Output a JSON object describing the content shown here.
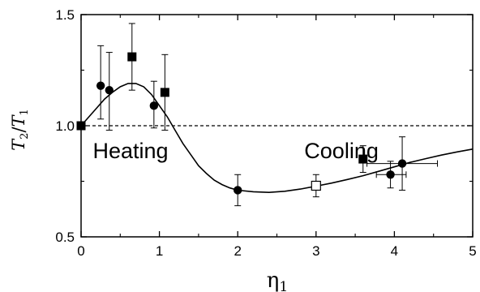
{
  "chart_data": {
    "type": "scatter",
    "xlabel": {
      "main": "η",
      "sub": "1"
    },
    "ylabel": {
      "main": "T",
      "sub1": "2",
      "sep": "/",
      "main2": "T",
      "sub2": "1"
    },
    "xlim": [
      0,
      5
    ],
    "ylim": [
      0.5,
      1.5
    ],
    "x_ticks": [
      "0",
      "1",
      "2",
      "3",
      "4",
      "5"
    ],
    "y_ticks": [
      "0.5",
      "1.0",
      "1.5"
    ],
    "reference_line": {
      "y": 1.0,
      "style": "dashed"
    },
    "annotations": [
      {
        "text": "Heating",
        "x": 0.15,
        "y": 0.92
      },
      {
        "text": "Cooling",
        "x": 2.85,
        "y": 0.92
      }
    ],
    "series": [
      {
        "marker": "filled-circle",
        "points": [
          {
            "x": 0.25,
            "y": 1.18,
            "y_err_lo": 0.15,
            "y_err_hi": 0.18
          },
          {
            "x": 0.36,
            "y": 1.16,
            "y_err_lo": 0.18,
            "y_err_hi": 0.17
          },
          {
            "x": 0.93,
            "y": 1.09,
            "y_err_lo": 0.1,
            "y_err_hi": 0.11
          },
          {
            "x": 2.0,
            "y": 0.71,
            "y_err_lo": 0.07,
            "y_err_hi": 0.07
          },
          {
            "x": 3.95,
            "y": 0.78,
            "y_err_lo": 0.06,
            "y_err_hi": 0.06,
            "x_err_lo": 0.18,
            "x_err_hi": 0.2
          },
          {
            "x": 4.1,
            "y": 0.83,
            "y_err_lo": 0.12,
            "y_err_hi": 0.12,
            "x_err_lo": 0.45,
            "x_err_hi": 0.45
          }
        ]
      },
      {
        "marker": "filled-square",
        "points": [
          {
            "x": 0.0,
            "y": 1.0
          },
          {
            "x": 0.65,
            "y": 1.31,
            "y_err_lo": 0.15,
            "y_err_hi": 0.15
          },
          {
            "x": 1.07,
            "y": 1.15,
            "y_err_lo": 0.17,
            "y_err_hi": 0.17
          },
          {
            "x": 3.6,
            "y": 0.85,
            "y_err_lo": 0.06,
            "y_err_hi": 0.06
          }
        ]
      },
      {
        "marker": "open-square",
        "points": [
          {
            "x": 3.0,
            "y": 0.73,
            "y_err_lo": 0.05,
            "y_err_hi": 0.05
          }
        ]
      }
    ],
    "curve": {
      "style": "solid",
      "points": [
        [
          0,
          1.0
        ],
        [
          0.1,
          1.04
        ],
        [
          0.2,
          1.08
        ],
        [
          0.3,
          1.12
        ],
        [
          0.4,
          1.15
        ],
        [
          0.5,
          1.175
        ],
        [
          0.6,
          1.19
        ],
        [
          0.7,
          1.19
        ],
        [
          0.8,
          1.175
        ],
        [
          0.9,
          1.14
        ],
        [
          1.0,
          1.09
        ],
        [
          1.1,
          1.04
        ],
        [
          1.2,
          0.98
        ],
        [
          1.3,
          0.92
        ],
        [
          1.4,
          0.87
        ],
        [
          1.5,
          0.82
        ],
        [
          1.6,
          0.785
        ],
        [
          1.7,
          0.755
        ],
        [
          1.8,
          0.735
        ],
        [
          1.9,
          0.72
        ],
        [
          2.0,
          0.71
        ],
        [
          2.2,
          0.703
        ],
        [
          2.4,
          0.7
        ],
        [
          2.6,
          0.705
        ],
        [
          2.8,
          0.715
        ],
        [
          3.0,
          0.728
        ],
        [
          3.2,
          0.742
        ],
        [
          3.4,
          0.758
        ],
        [
          3.6,
          0.775
        ],
        [
          3.8,
          0.795
        ],
        [
          4.0,
          0.815
        ],
        [
          4.2,
          0.835
        ],
        [
          4.4,
          0.852
        ],
        [
          4.6,
          0.868
        ],
        [
          4.8,
          0.882
        ],
        [
          5.0,
          0.895
        ]
      ]
    }
  }
}
